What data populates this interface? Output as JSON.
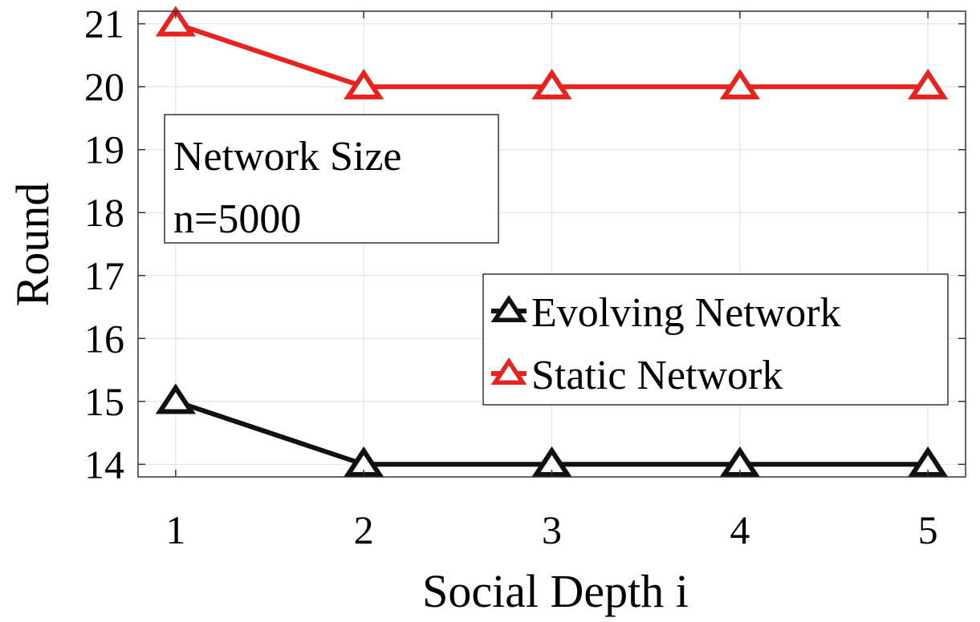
{
  "chart_data": {
    "type": "line",
    "xlabel": "Social Depth i",
    "ylabel": "Round",
    "x": [
      1,
      2,
      3,
      4,
      5
    ],
    "xlim": [
      0.8,
      5.2
    ],
    "ylim": [
      13.8,
      21.2
    ],
    "xticks": [
      1,
      2,
      3,
      4,
      5
    ],
    "yticks": [
      14,
      15,
      16,
      17,
      18,
      19,
      20,
      21
    ],
    "grid": true,
    "legend_position": "right",
    "series": [
      {
        "name": "Evolving Network",
        "color": "#111111",
        "marker": "triangle",
        "values": [
          15,
          14,
          14,
          14,
          14
        ]
      },
      {
        "name": "Static Network",
        "color": "#e8221e",
        "marker": "triangle",
        "values": [
          21,
          20,
          20,
          20,
          20
        ]
      }
    ],
    "annotation": {
      "line1": "Network Size",
      "line2": "n=5000"
    }
  }
}
